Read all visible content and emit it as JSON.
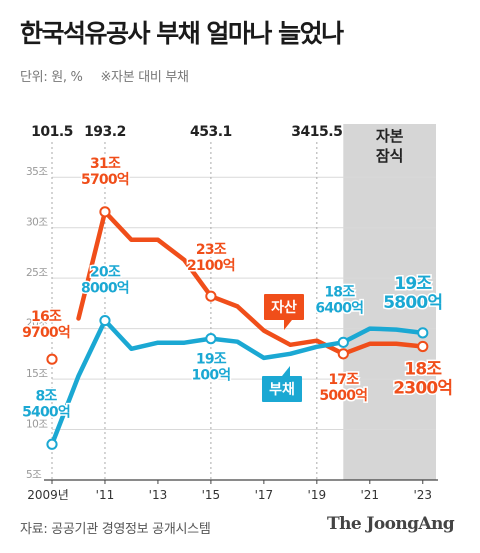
{
  "title": "한국석유공사 부채 얼마나 늘었나",
  "unit_label": "단위: 원, %",
  "note": "※자본 대비 부채",
  "source": "자료: 공공기관 경영정보 공개시스템",
  "logo": "The JoongAng",
  "colors": {
    "debt": "#f04e1a",
    "ratio": "#1ba8d3",
    "capital_impairment_band": "#d6d6d6",
    "grid": "#d9d9d9",
    "axis": "#444444"
  },
  "chart_data": {
    "type": "line",
    "title": "한국석유공사 부채 얼마나 늘었나",
    "x": [
      2009,
      2010,
      2011,
      2012,
      2013,
      2014,
      2015,
      2016,
      2017,
      2018,
      2019,
      2020,
      2021,
      2022,
      2023
    ],
    "xlim": [
      2009,
      2023.5
    ],
    "x_tick_labels": [
      "2009년",
      "'11",
      "'13",
      "'15",
      "'17",
      "'19",
      "'21",
      "'23"
    ],
    "x_tick_values": [
      2009,
      2011,
      2013,
      2015,
      2017,
      2019,
      2021,
      2023
    ],
    "ylim": [
      5,
      37.5
    ],
    "y_ticks": [
      5,
      10,
      15,
      20,
      25,
      30,
      35
    ],
    "y_tick_labels": [
      "5조",
      "10조",
      "15조",
      "20조",
      "25조",
      "30조",
      "35조"
    ],
    "grid": "horizontal",
    "series": [
      {
        "name": "자산",
        "color": "#f04e1a",
        "x": [
          2010,
          2011,
          2012,
          2013,
          2014,
          2015,
          2016,
          2017,
          2018,
          2019,
          2020,
          2021,
          2022,
          2023
        ],
        "values": [
          21.0,
          31.57,
          28.8,
          28.8,
          26.8,
          23.21,
          22.2,
          19.8,
          18.4,
          18.8,
          17.5,
          18.5,
          18.5,
          18.23
        ]
      },
      {
        "name": "부채",
        "color": "#1ba8d3",
        "x": [
          2009,
          2010,
          2011,
          2012,
          2013,
          2014,
          2015,
          2016,
          2017,
          2018,
          2019,
          2020,
          2021,
          2022,
          2023
        ],
        "values": [
          8.54,
          15.3,
          20.8,
          18.0,
          18.6,
          18.6,
          19.01,
          18.7,
          17.1,
          17.5,
          18.2,
          18.64,
          20.0,
          19.9,
          19.58
        ]
      }
    ],
    "extra_points": [
      {
        "series": "자산",
        "x": 2009,
        "value": 16.97
      }
    ],
    "point_labels": [
      {
        "series": "자산",
        "x": 2009,
        "lines": [
          "16조",
          "9700억"
        ]
      },
      {
        "series": "자산",
        "x": 2011,
        "lines": [
          "31조",
          "5700억"
        ]
      },
      {
        "series": "자산",
        "x": 2015,
        "lines": [
          "23조",
          "2100억"
        ]
      },
      {
        "series": "자산",
        "x": 2020,
        "lines": [
          "17조",
          "5000억"
        ]
      },
      {
        "series": "자산",
        "x": 2023,
        "lines": [
          "18조",
          "2300억"
        ]
      },
      {
        "series": "부채",
        "x": 2009,
        "lines": [
          "8조",
          "5400억"
        ]
      },
      {
        "series": "부채",
        "x": 2011,
        "lines": [
          "20조",
          "8000억"
        ]
      },
      {
        "series": "부채",
        "x": 2015,
        "lines": [
          "19조",
          "100억"
        ]
      },
      {
        "series": "부채",
        "x": 2020,
        "lines": [
          "18조",
          "6400억"
        ]
      },
      {
        "series": "부채",
        "x": 2023,
        "lines": [
          "19조",
          "5800억"
        ]
      }
    ],
    "ratio_annotations": [
      {
        "x": 2009,
        "label": "101.5"
      },
      {
        "x": 2011,
        "label": "193.2"
      },
      {
        "x": 2015,
        "label": "453.1"
      },
      {
        "x": 2019,
        "label": "3415.5"
      }
    ],
    "shaded_region": {
      "from": 2020,
      "to": 2023.5,
      "lines": [
        "자본",
        "잠식"
      ]
    },
    "legend": [
      {
        "series": "자산",
        "label": "자산",
        "placement": "center-right"
      },
      {
        "series": "부채",
        "label": "부채",
        "placement": "lower-right"
      }
    ]
  }
}
